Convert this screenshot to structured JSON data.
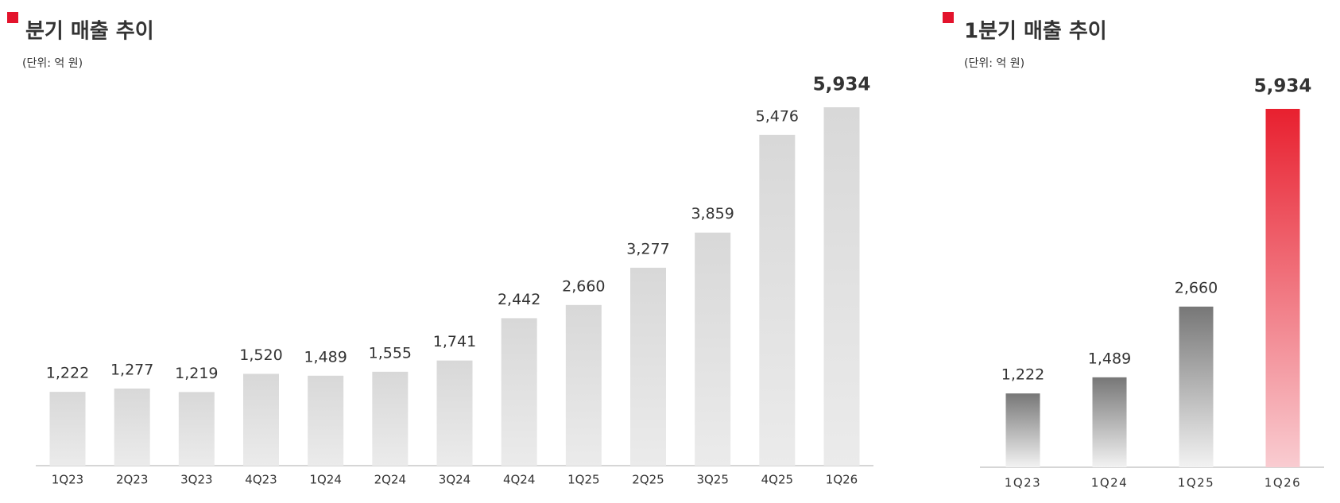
{
  "chart_data": [
    {
      "type": "bar",
      "title": "분기 매출 추이",
      "subtitle": "(단위: 억 원)",
      "categories": [
        "1Q23",
        "2Q23",
        "3Q23",
        "4Q23",
        "1Q24",
        "2Q24",
        "3Q24",
        "4Q24",
        "1Q25",
        "2Q25",
        "3Q25",
        "4Q25",
        "1Q26"
      ],
      "values": [
        1222,
        1277,
        1219,
        1520,
        1489,
        1555,
        1741,
        2442,
        2660,
        3277,
        3859,
        5476,
        5934
      ],
      "value_labels": [
        "1,222",
        "1,277",
        "1,219",
        "1,520",
        "1,489",
        "1,555",
        "1,741",
        "2,442",
        "2,660",
        "3,277",
        "3,859",
        "5,476",
        "5,934"
      ],
      "bar_gradients": [
        [
          "#d8d8d8",
          "#ebebeb"
        ],
        [
          "#d8d8d8",
          "#ebebeb"
        ],
        [
          "#d8d8d8",
          "#ebebeb"
        ],
        [
          "#d8d8d8",
          "#ebebeb"
        ],
        [
          "#d8d8d8",
          "#ebebeb"
        ],
        [
          "#d8d8d8",
          "#ebebeb"
        ],
        [
          "#d8d8d8",
          "#ebebeb"
        ],
        [
          "#d8d8d8",
          "#ebebeb"
        ],
        [
          "#d8d8d8",
          "#ebebeb"
        ],
        [
          "#d8d8d8",
          "#ebebeb"
        ],
        [
          "#d8d8d8",
          "#ebebeb"
        ],
        [
          "#d8d8d8",
          "#ebebeb"
        ],
        [
          "#d8d8d8",
          "#ebebeb"
        ]
      ],
      "label_emphasis": "last"
    },
    {
      "type": "bar",
      "title": "1분기 매출 추이",
      "subtitle": "(단위: 억 원)",
      "categories": [
        "1Q23",
        "1Q24",
        "1Q25",
        "1Q26"
      ],
      "values": [
        1222,
        1489,
        2660,
        5934
      ],
      "value_labels": [
        "1,222",
        "1,489",
        "2,660",
        "5,934"
      ],
      "bar_gradients": [
        [
          "#777777",
          "#f2f2f2"
        ],
        [
          "#777777",
          "#f2f2f2"
        ],
        [
          "#777777",
          "#f2f2f2"
        ],
        [
          "#e8202f",
          "#f9ccd1"
        ]
      ],
      "label_emphasis": "last"
    }
  ]
}
